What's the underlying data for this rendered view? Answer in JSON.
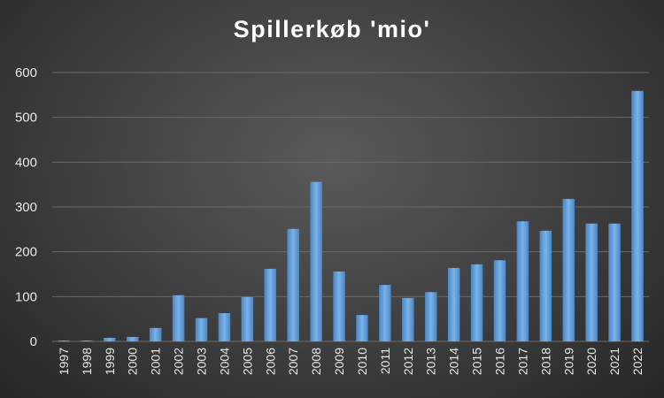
{
  "chart_data": {
    "type": "bar",
    "title": "Spillerkøb 'mio'",
    "xlabel": "",
    "ylabel": "",
    "ylim": [
      0,
      600
    ],
    "yticks": [
      0,
      100,
      200,
      300,
      400,
      500,
      600
    ],
    "grid": true,
    "legend": "none",
    "categories": [
      "1997",
      "1998",
      "1999",
      "2000",
      "2001",
      "2002",
      "2003",
      "2004",
      "2005",
      "2006",
      "2007",
      "2008",
      "2009",
      "2010",
      "2011",
      "2012",
      "2013",
      "2014",
      "2015",
      "2016",
      "2017",
      "2018",
      "2019",
      "2020",
      "2021",
      "2022"
    ],
    "values": [
      2,
      2,
      8,
      10,
      30,
      103,
      52,
      63,
      99,
      162,
      251,
      356,
      156,
      59,
      126,
      97,
      110,
      164,
      172,
      181,
      268,
      247,
      318,
      263,
      263,
      559
    ],
    "bar_color": "#5b9bd5"
  }
}
